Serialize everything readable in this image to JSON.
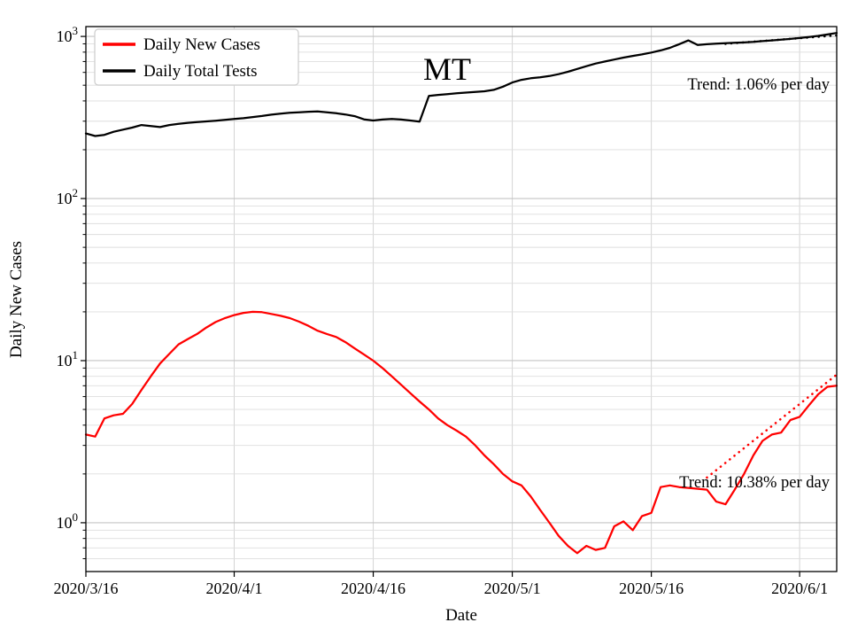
{
  "title": "MT",
  "axes": {
    "xlabel": "Date",
    "ylabel": "Daily New Cases"
  },
  "annotations": {
    "tests_trend": "Trend: 1.06% per day",
    "cases_trend": "Trend: 10.38% per day"
  },
  "chart_data": {
    "type": "line",
    "yscale": "log",
    "title": "MT",
    "xlabel": "Date",
    "ylabel": "Daily New Cases",
    "ylim": [
      0.5,
      1150
    ],
    "grid": true,
    "legend_position": "upper left",
    "x_tick_labels": [
      "2020/3/16",
      "2020/4/1",
      "2020/4/16",
      "2020/5/1",
      "2020/5/16",
      "2020/6/1"
    ],
    "y_ticks": [
      {
        "value": 1,
        "label": "10^0"
      },
      {
        "value": 10,
        "label": "10^1"
      },
      {
        "value": 100,
        "label": "10^2"
      },
      {
        "value": 1000,
        "label": "10^3"
      }
    ],
    "dates": [
      "2020/3/16",
      "2020/3/17",
      "2020/3/18",
      "2020/3/19",
      "2020/3/20",
      "2020/3/21",
      "2020/3/22",
      "2020/3/23",
      "2020/3/24",
      "2020/3/25",
      "2020/3/26",
      "2020/3/27",
      "2020/3/28",
      "2020/3/29",
      "2020/3/30",
      "2020/3/31",
      "2020/4/1",
      "2020/4/2",
      "2020/4/3",
      "2020/4/4",
      "2020/4/5",
      "2020/4/6",
      "2020/4/7",
      "2020/4/8",
      "2020/4/9",
      "2020/4/10",
      "2020/4/11",
      "2020/4/12",
      "2020/4/13",
      "2020/4/14",
      "2020/4/15",
      "2020/4/16",
      "2020/4/17",
      "2020/4/18",
      "2020/4/19",
      "2020/4/20",
      "2020/4/21",
      "2020/4/22",
      "2020/4/23",
      "2020/4/24",
      "2020/4/25",
      "2020/4/26",
      "2020/4/27",
      "2020/4/28",
      "2020/4/29",
      "2020/4/30",
      "2020/5/1",
      "2020/5/2",
      "2020/5/3",
      "2020/5/4",
      "2020/5/5",
      "2020/5/6",
      "2020/5/7",
      "2020/5/8",
      "2020/5/9",
      "2020/5/10",
      "2020/5/11",
      "2020/5/12",
      "2020/5/13",
      "2020/5/14",
      "2020/5/15",
      "2020/5/16",
      "2020/5/17",
      "2020/5/18",
      "2020/5/19",
      "2020/5/20",
      "2020/5/21",
      "2020/5/22",
      "2020/5/23",
      "2020/5/24",
      "2020/5/25",
      "2020/5/26",
      "2020/5/27",
      "2020/5/28",
      "2020/5/29",
      "2020/5/30",
      "2020/5/31",
      "2020/6/1",
      "2020/6/2",
      "2020/6/3",
      "2020/6/4",
      "2020/6/5"
    ],
    "series": [
      {
        "name": "Daily New Cases",
        "color": "#ff0000",
        "values": [
          3.5,
          3.4,
          4.4,
          4.6,
          4.7,
          5.4,
          6.6,
          8.0,
          9.6,
          11.0,
          12.6,
          13.6,
          14.6,
          16.0,
          17.3,
          18.3,
          19.1,
          19.7,
          20.0,
          19.9,
          19.4,
          18.9,
          18.3,
          17.4,
          16.4,
          15.3,
          14.6,
          14.0,
          13.0,
          11.9,
          10.9,
          10.0,
          9.0,
          8.0,
          7.1,
          6.3,
          5.6,
          5.0,
          4.4,
          4.0,
          3.7,
          3.4,
          3.0,
          2.6,
          2.3,
          2.0,
          1.8,
          1.7,
          1.45,
          1.2,
          1.0,
          0.83,
          0.72,
          0.65,
          0.72,
          0.68,
          0.7,
          0.95,
          1.02,
          0.9,
          1.1,
          1.15,
          1.66,
          1.7,
          1.66,
          1.64,
          1.62,
          1.6,
          1.35,
          1.3,
          1.6,
          2.0,
          2.6,
          3.2,
          3.5,
          3.6,
          4.3,
          4.5,
          5.3,
          6.2,
          6.9,
          7.0
        ]
      },
      {
        "name": "Daily Total Tests",
        "color": "#000000",
        "values": [
          252,
          243,
          247,
          258,
          266,
          274,
          284,
          280,
          276,
          284,
          289,
          293,
          296,
          299,
          302,
          306,
          310,
          313,
          318,
          323,
          329,
          334,
          338,
          340,
          343,
          345,
          340,
          336,
          330,
          322,
          308,
          303,
          307,
          310,
          307,
          303,
          298,
          430,
          436,
          441,
          446,
          450,
          454,
          459,
          468,
          490,
          520,
          540,
          552,
          560,
          570,
          585,
          605,
          630,
          655,
          680,
          700,
          720,
          740,
          758,
          775,
          795,
          820,
          850,
          895,
          945,
          885,
          895,
          903,
          908,
          913,
          918,
          925,
          935,
          945,
          955,
          965,
          978,
          992,
          1008,
          1028,
          1050
        ]
      }
    ],
    "trend_lines": [
      {
        "name": "cases-trend",
        "series": "Daily New Cases",
        "color": "#ff0000",
        "annotation": "Trend: 10.38% per day",
        "rate_percent_per_day": 10.38,
        "start_date": "2020/5/22",
        "start_value": 1.9,
        "end_date": "2020/6/5",
        "end_value": 8.2
      },
      {
        "name": "tests-trend",
        "series": "Daily Total Tests",
        "color": "#000000",
        "annotation": "Trend: 1.06% per day",
        "rate_percent_per_day": 1.06,
        "start_date": "2020/5/24",
        "start_value": 900,
        "end_date": "2020/6/5",
        "end_value": 1015
      }
    ]
  }
}
